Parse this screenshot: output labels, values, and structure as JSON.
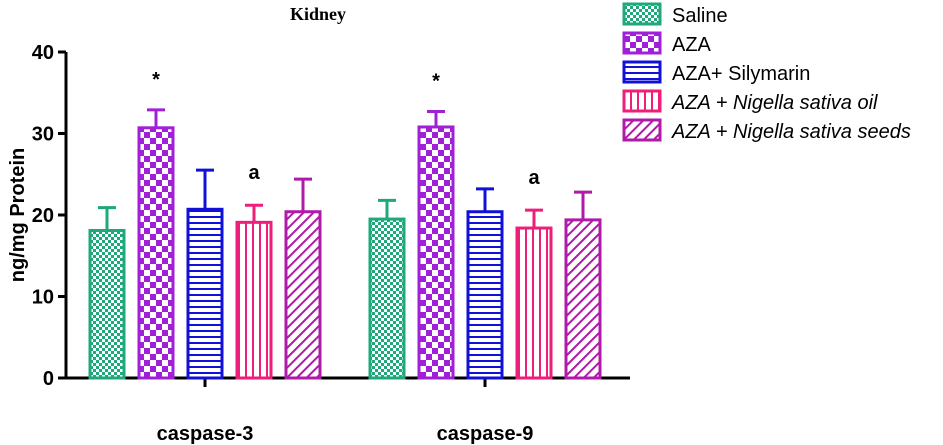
{
  "chart_data": {
    "type": "bar",
    "title": "Kidney",
    "xlabel": "",
    "ylabel": "ng/mg Protein",
    "ylim": [
      0,
      40
    ],
    "yticks": [
      "0",
      "10",
      "20",
      "30",
      "40"
    ],
    "categories": [
      "caspase-3",
      "caspase-9"
    ],
    "series": [
      {
        "name": "Saline",
        "italic": false,
        "color": "#1fa87a",
        "pattern": "checker-fine",
        "values": [
          18.1,
          19.5
        ],
        "errors": [
          2.8,
          2.3
        ],
        "annotations": [
          "",
          ""
        ]
      },
      {
        "name": "AZA",
        "italic": false,
        "color": "#a020d8",
        "pattern": "checker",
        "values": [
          30.7,
          30.8
        ],
        "errors": [
          2.2,
          1.9
        ],
        "annotations": [
          "*",
          "*"
        ]
      },
      {
        "name": "AZA+ Silymarin",
        "italic": false,
        "color": "#1010d8",
        "pattern": "hlines",
        "values": [
          20.7,
          20.4
        ],
        "errors": [
          4.8,
          2.8
        ],
        "annotations": [
          "",
          ""
        ]
      },
      {
        "name": "AZA + Nigella sativa oil",
        "italic": true,
        "color": "#ee1f7a",
        "pattern": "vlines",
        "values": [
          19.1,
          18.4
        ],
        "errors": [
          2.1,
          2.2
        ],
        "annotations": [
          "a",
          "a"
        ]
      },
      {
        "name": "AZA + Nigella sativa seeds",
        "italic": true,
        "color": "#b01aa8",
        "pattern": "diag",
        "values": [
          20.4,
          19.4
        ],
        "errors": [
          4.0,
          3.4
        ],
        "annotations": [
          "",
          ""
        ]
      }
    ]
  }
}
